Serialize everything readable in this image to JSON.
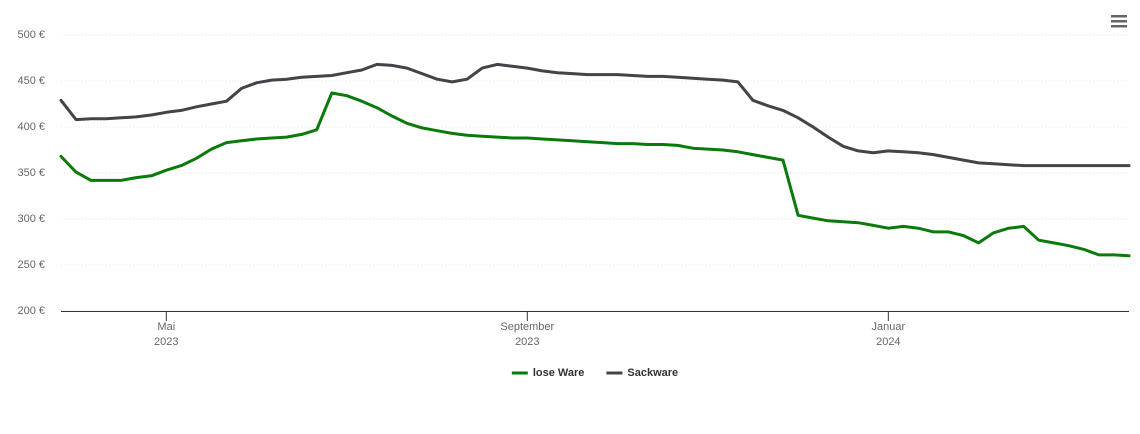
{
  "chart_data": {
    "type": "line",
    "categories": [
      null,
      null,
      null,
      null,
      null,
      null,
      null,
      [
        "Mai",
        "2023"
      ],
      null,
      null,
      null,
      null,
      null,
      null,
      null,
      null,
      null,
      null,
      null,
      null,
      null,
      null,
      null,
      null,
      null,
      null,
      null,
      null,
      null,
      null,
      null,
      [
        "September",
        "2023"
      ],
      null,
      null,
      null,
      null,
      null,
      null,
      null,
      null,
      null,
      null,
      null,
      null,
      null,
      null,
      null,
      null,
      null,
      null,
      null,
      null,
      null,
      null,
      null,
      [
        "Januar",
        "2024"
      ],
      null,
      null,
      null,
      null,
      null,
      null,
      null,
      null,
      null,
      null,
      null,
      null,
      null,
      null,
      null,
      null
    ],
    "series": [
      {
        "name": "lose Ware",
        "color": "#0a7a0a",
        "values": [
          368,
          351,
          342,
          342,
          342,
          345,
          347,
          353,
          358,
          366,
          376,
          383,
          385,
          387,
          388,
          389,
          392,
          397,
          437,
          434,
          428,
          421,
          412,
          404,
          399,
          396,
          393,
          391,
          390,
          389,
          388,
          388,
          387,
          386,
          385,
          384,
          383,
          382,
          382,
          381,
          381,
          380,
          377,
          376,
          375,
          373,
          370,
          367,
          364,
          304,
          301,
          298,
          297,
          296,
          293,
          290,
          292,
          290,
          286,
          286,
          282,
          274,
          285,
          290,
          292,
          277,
          274,
          271,
          267,
          261,
          261,
          260
        ]
      },
      {
        "name": "Sackware",
        "color": "#434348",
        "values": [
          429,
          408,
          409,
          409,
          410,
          411,
          413,
          416,
          418,
          422,
          425,
          428,
          442,
          448,
          451,
          452,
          454,
          455,
          456,
          459,
          462,
          468,
          467,
          464,
          458,
          452,
          449,
          452,
          464,
          468,
          466,
          464,
          461,
          459,
          458,
          457,
          457,
          457,
          456,
          455,
          455,
          454,
          453,
          452,
          451,
          449,
          429,
          423,
          418,
          410,
          400,
          389,
          379,
          374,
          372,
          374,
          373,
          372,
          370,
          367,
          364,
          361,
          360,
          359,
          358,
          358,
          358,
          358,
          358,
          358,
          358,
          358
        ]
      }
    ],
    "ylim": [
      200,
      500
    ],
    "yticks": [
      {
        "value": 200,
        "label": "200 €"
      },
      {
        "value": 250,
        "label": "250 €"
      },
      {
        "value": 300,
        "label": "300 €"
      },
      {
        "value": 350,
        "label": "350 €"
      },
      {
        "value": 400,
        "label": "400 €"
      },
      {
        "value": 450,
        "label": "450 €"
      },
      {
        "value": 500,
        "label": "500 €"
      }
    ],
    "grid": true,
    "legend": "bottom"
  }
}
